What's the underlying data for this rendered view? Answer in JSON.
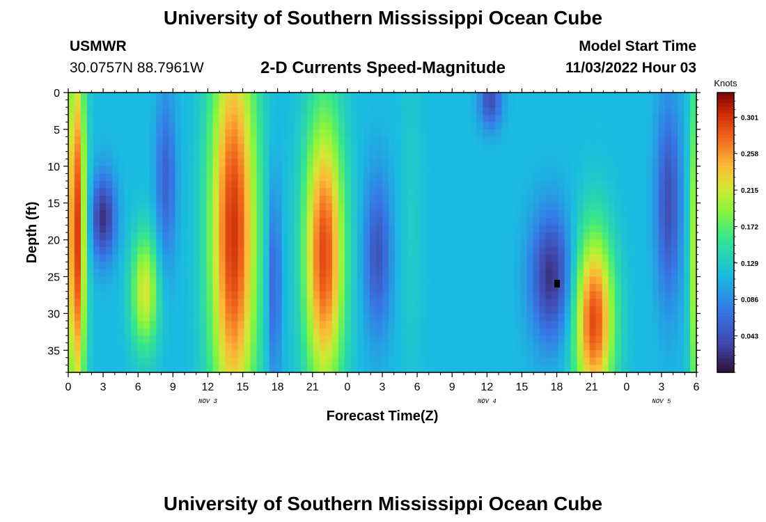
{
  "title": "University of Southern Mississippi Ocean Cube",
  "title_repeat": "University of Southern Mississippi Ocean Cube",
  "station": "USMWR",
  "coordinates": "30.0757N  88.7961W",
  "subtitle": "2-D Currents Speed-Magnitude",
  "model_start_label": "Model Start Time",
  "model_start_value": "11/03/2022 Hour 03",
  "chart_data": {
    "type": "heatmap",
    "title": "2-D Currents Speed-Magnitude",
    "xlabel": "Forecast Time(Z)",
    "ylabel": "Depth (ft)",
    "x_range_hours": [
      0,
      54
    ],
    "x_tick_hours": [
      0,
      3,
      6,
      9,
      12,
      15,
      18,
      21,
      24,
      27,
      30,
      33,
      36,
      39,
      42,
      45,
      48,
      51,
      54
    ],
    "x_tick_labels": [
      "0",
      "3",
      "6",
      "9",
      "12",
      "15",
      "18",
      "21",
      "0",
      "3",
      "6",
      "9",
      "12",
      "15",
      "18",
      "21",
      "0",
      "3",
      "6"
    ],
    "date_labels": [
      {
        "hour": 12,
        "text": "NOV 3"
      },
      {
        "hour": 36,
        "text": "NOV 4"
      },
      {
        "hour": 51,
        "text": "NOV 5"
      }
    ],
    "y_range": [
      0,
      38
    ],
    "y_reversed": true,
    "y_ticks": [
      0,
      5,
      10,
      15,
      20,
      25,
      30,
      35
    ],
    "y_tick_labels": [
      "0",
      "5",
      "10",
      "15",
      "20",
      "25",
      "30",
      "35"
    ],
    "colorbar": {
      "title": "Knots",
      "range": [
        0.0,
        0.33
      ],
      "ticks": [
        0.043,
        0.086,
        0.129,
        0.172,
        0.215,
        0.258,
        0.301
      ],
      "tick_labels": [
        "0.043",
        "0.086",
        "0.129",
        "0.172",
        "0.215",
        "0.258",
        "0.301"
      ]
    },
    "features": [
      {
        "hour": 0.7,
        "depth": 19,
        "speed": 0.3,
        "sx": 0.8,
        "sy": 25
      },
      {
        "hour": 3.0,
        "depth": 17,
        "speed": 0.02,
        "sx": 1.1,
        "sy": 6
      },
      {
        "hour": 6.6,
        "depth": 27,
        "speed": 0.22,
        "sx": 1.2,
        "sy": 8
      },
      {
        "hour": 8.4,
        "depth": 12,
        "speed": 0.055,
        "sx": 0.9,
        "sy": 12
      },
      {
        "hour": 14.2,
        "depth": 19,
        "speed": 0.3,
        "sx": 2.0,
        "sy": 28
      },
      {
        "hour": 17.7,
        "depth": 26,
        "speed": 0.05,
        "sx": 0.6,
        "sy": 14
      },
      {
        "hour": 22.0,
        "depth": 22,
        "speed": 0.29,
        "sx": 1.7,
        "sy": 19
      },
      {
        "hour": 26.6,
        "depth": 22,
        "speed": 0.045,
        "sx": 1.2,
        "sy": 11
      },
      {
        "hour": 29.5,
        "depth": 18,
        "speed": 0.13,
        "sx": 1.0,
        "sy": 25
      },
      {
        "hour": 36.3,
        "depth": 1,
        "speed": 0.04,
        "sx": 1.0,
        "sy": 4
      },
      {
        "hour": 41.5,
        "depth": 25,
        "speed": 0.02,
        "sx": 1.8,
        "sy": 9
      },
      {
        "hour": 45.2,
        "depth": 31,
        "speed": 0.29,
        "sx": 1.7,
        "sy": 12
      },
      {
        "hour": 51.6,
        "depth": 15,
        "speed": 0.04,
        "sx": 1.1,
        "sy": 14
      },
      {
        "hour": 53.7,
        "depth": 22,
        "speed": 0.2,
        "sx": 0.4,
        "sy": 25
      }
    ],
    "background_speed": 0.115
  }
}
